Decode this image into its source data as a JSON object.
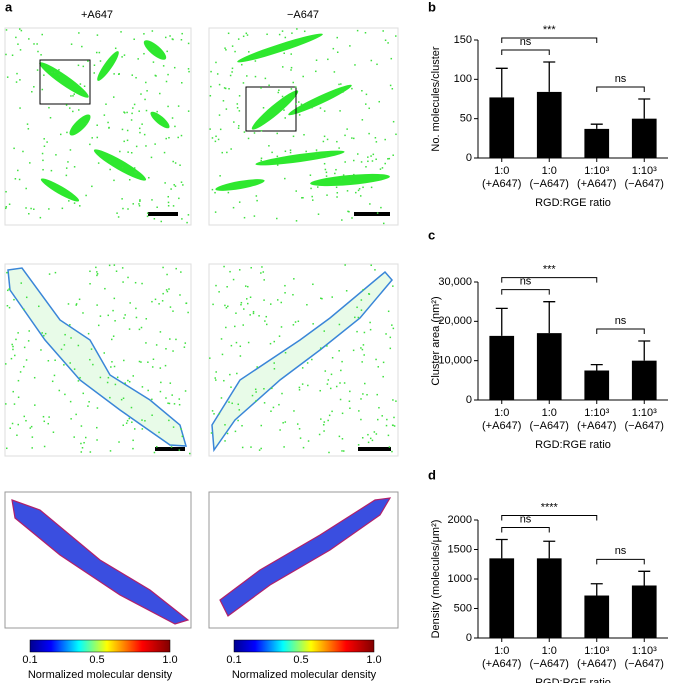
{
  "figure": {
    "panel_labels": [
      "a",
      "b",
      "c",
      "d"
    ],
    "image_titles": [
      "+A647",
      "−A647"
    ],
    "colorbars": [
      {
        "ticks": [
          "0.1",
          "0.5",
          "1.0"
        ],
        "label": "Normalized molecular density"
      },
      {
        "ticks": [
          "0.1",
          "0.5",
          "1.0"
        ],
        "label": "Normalized molecular density"
      }
    ]
  },
  "chart_data": [
    {
      "type": "bar",
      "ylabel": "No. molecules/cluster",
      "xlabel": "RGD:RGE ratio",
      "categories": [
        [
          "1:0",
          "(+A647)"
        ],
        [
          "1:0",
          "(−A647)"
        ],
        [
          "1:10³",
          "(+A647)"
        ],
        [
          "1:10³",
          "(−A647)"
        ]
      ],
      "values": [
        77,
        84,
        37,
        50
      ],
      "errors": [
        37,
        38,
        6,
        25
      ],
      "color": "#000000",
      "ylim": [
        0,
        150
      ],
      "yticks": [
        0,
        50,
        100,
        150
      ],
      "annotations": [
        {
          "text": "***",
          "from": 0,
          "to": 2
        },
        {
          "text": "ns",
          "from": 0,
          "to": 1
        },
        {
          "text": "ns",
          "from": 2,
          "to": 3
        }
      ]
    },
    {
      "type": "bar",
      "ylabel": "Cluster area (nm²)",
      "xlabel": "RGD:RGE ratio",
      "categories": [
        [
          "1:0",
          "(+A647)"
        ],
        [
          "1:0",
          "(−A647)"
        ],
        [
          "1:10³",
          "(+A647)"
        ],
        [
          "1:10³",
          "(−A647)"
        ]
      ],
      "values": [
        16300,
        17000,
        7500,
        10000
      ],
      "errors": [
        7000,
        8000,
        1500,
        5000
      ],
      "color": "#000000",
      "ylim": [
        0,
        30000
      ],
      "yticks": [
        0,
        {
          "value": 10000,
          "label": "10,000"
        },
        {
          "value": 20000,
          "label": "20,000"
        },
        {
          "value": 30000,
          "label": "30,000"
        }
      ],
      "annotations": [
        {
          "text": "***",
          "from": 0,
          "to": 2
        },
        {
          "text": "ns",
          "from": 0,
          "to": 1
        },
        {
          "text": "ns",
          "from": 2,
          "to": 3
        }
      ]
    },
    {
      "type": "bar",
      "ylabel": "Density (molecules/μm²)",
      "xlabel": "RGD:RGE ratio",
      "categories": [
        [
          "1:0",
          "(+A647)"
        ],
        [
          "1:0",
          "(−A647)"
        ],
        [
          "1:10³",
          "(+A647)"
        ],
        [
          "1:10³",
          "(−A647)"
        ]
      ],
      "values": [
        1350,
        1350,
        720,
        890
      ],
      "errors": [
        320,
        290,
        200,
        240
      ],
      "color": "#000000",
      "ylim": [
        0,
        2000
      ],
      "yticks": [
        0,
        500,
        1000,
        1500,
        2000
      ],
      "annotations": [
        {
          "text": "****",
          "from": 0,
          "to": 2
        },
        {
          "text": "ns",
          "from": 0,
          "to": 1
        },
        {
          "text": "ns",
          "from": 2,
          "to": 3
        }
      ]
    }
  ]
}
